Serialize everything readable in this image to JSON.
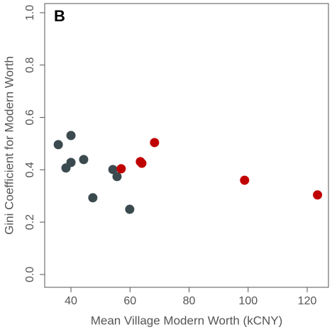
{
  "chart_data": {
    "type": "scatter",
    "annotation": "B",
    "x_label": "Mean Village Modern Worth (kCNY)",
    "y_label": "Gini Coefficient for Modern Worth",
    "xlim": [
      31.1,
      127.2
    ],
    "ylim": [
      -0.049,
      1.035
    ],
    "xticks": [
      40,
      60,
      80,
      100,
      120
    ],
    "yticks": [
      {
        "value": 0,
        "label": "0.0"
      },
      0.2,
      0.4,
      0.6,
      0.8,
      {
        "value": 1,
        "label": "1.0"
      }
    ],
    "series": [
      {
        "color": "#3b4a4f",
        "x": [
          35.7,
          40.0,
          38.3,
          40.0,
          44.3,
          47.4,
          54.2,
          55.6,
          59.9
        ],
        "values": [
          0.496,
          0.531,
          0.407,
          0.428,
          0.439,
          0.293,
          0.401,
          0.374,
          0.249
        ]
      },
      {
        "color": "#c00000",
        "x": [
          57.0,
          63.5,
          64.0,
          68.3,
          98.8,
          123.5
        ],
        "values": [
          0.404,
          0.431,
          0.425,
          0.504,
          0.36,
          0.304
        ]
      }
    ]
  }
}
